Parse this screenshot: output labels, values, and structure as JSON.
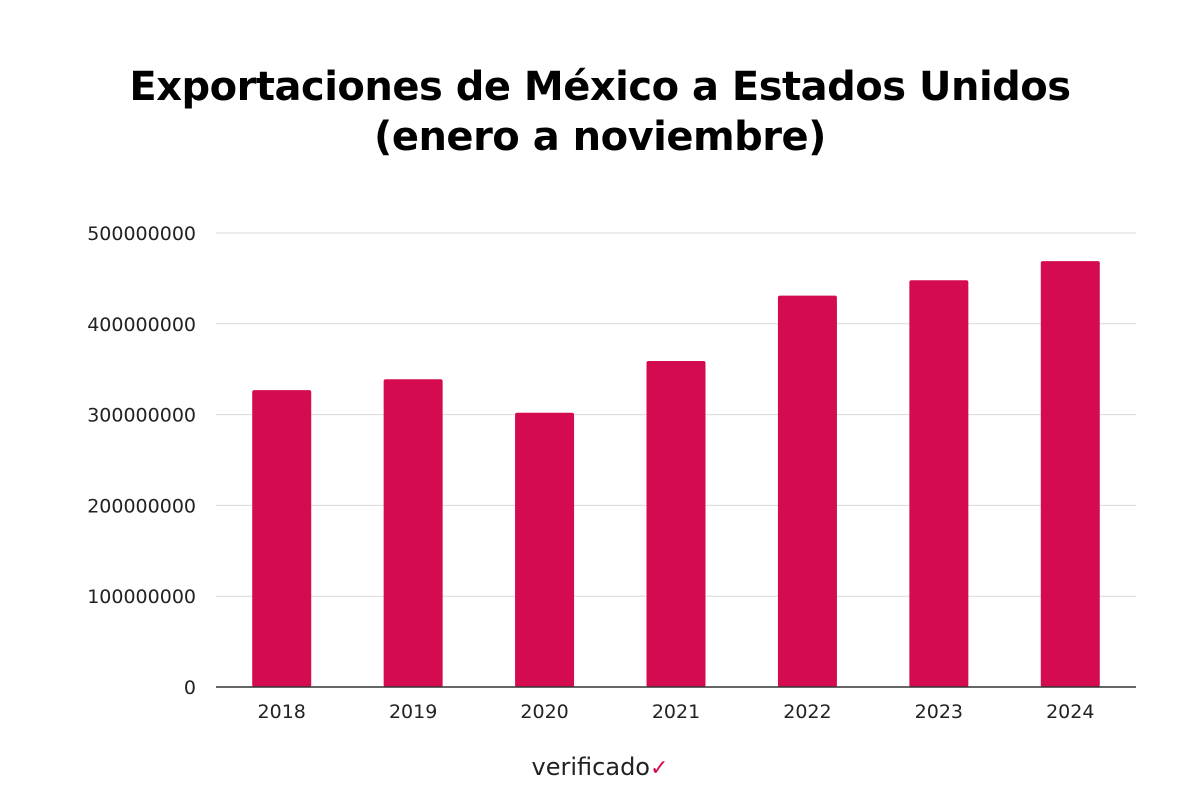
{
  "chart_data": {
    "type": "bar",
    "title_lines": [
      "Exportaciones de México a Estados Unidos",
      "(enero a noviembre)"
    ],
    "categories": [
      "2018",
      "2019",
      "2020",
      "2021",
      "2022",
      "2023",
      "2024"
    ],
    "values": [
      327000000,
      339000000,
      302000000,
      359000000,
      431000000,
      448000000,
      469000000
    ],
    "ylim": [
      0,
      500000000
    ],
    "yticks": [
      "0",
      "100000000",
      "200000000",
      "300000000",
      "400000000",
      "500000000"
    ],
    "grid": true,
    "bar_color": "#d40b50",
    "grid_color": "#d9d9d9"
  },
  "footer": {
    "brand": "verificado",
    "brand_mark": "✓"
  }
}
